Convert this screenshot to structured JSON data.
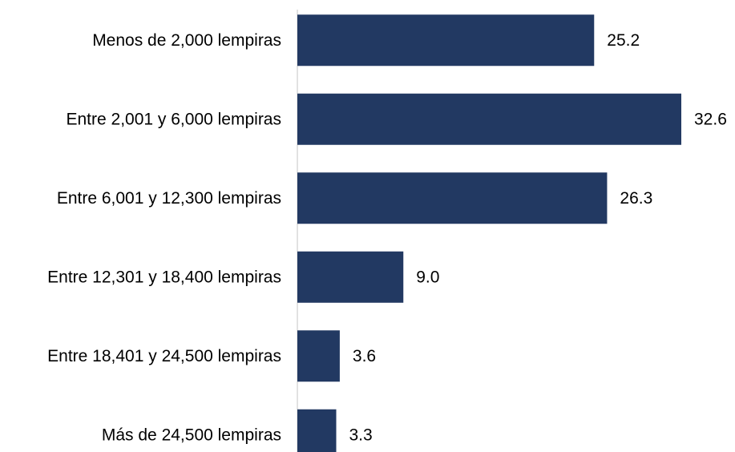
{
  "chart_data": {
    "type": "bar",
    "orientation": "horizontal",
    "title": "",
    "xlabel": "",
    "ylabel": "",
    "categories": [
      "Menos de 2,000 lempiras",
      "Entre 2,001 y 6,000 lempiras",
      "Entre 6,001 y 12,300 lempiras",
      "Entre 12,301 y 18,400 lempiras",
      "Entre 18,401 y 24,500 lempiras",
      "Más de 24,500 lempiras"
    ],
    "values": [
      25.2,
      32.6,
      26.3,
      9.0,
      3.6,
      3.3
    ],
    "value_labels": [
      "25.2",
      "32.6",
      "26.3",
      "9.0",
      "3.6",
      "3.3"
    ],
    "xlim": [
      0,
      32.6
    ],
    "grid": false,
    "legend": "none",
    "bar_color": "#223962",
    "axis_color": "#d9d9d9"
  }
}
